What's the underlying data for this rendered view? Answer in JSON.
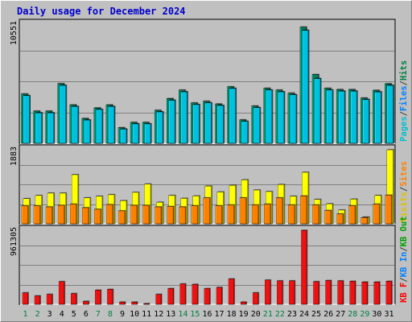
{
  "window": {
    "title": "Daily usage for December 2024"
  },
  "chart_data": {
    "type": "bar",
    "title": "Daily usage for December 2024",
    "grid": true,
    "categories": [
      "1",
      "2",
      "3",
      "4",
      "5",
      "6",
      "7",
      "8",
      "9",
      "10",
      "11",
      "12",
      "13",
      "14",
      "15",
      "16",
      "17",
      "18",
      "19",
      "20",
      "21",
      "22",
      "23",
      "24",
      "25",
      "26",
      "27",
      "28",
      "29",
      "30",
      "31"
    ],
    "category_colors": [
      "#008040",
      "#008040",
      "#000000",
      "#000000",
      "#000000",
      "#000000",
      "#008040",
      "#008040",
      "#000000",
      "#000000",
      "#000000",
      "#000000",
      "#000000",
      "#008040",
      "#008040",
      "#000000",
      "#000000",
      "#000000",
      "#000000",
      "#000000",
      "#008040",
      "#008040",
      "#000000",
      "#000000",
      "#000000",
      "#000000",
      "#000000",
      "#008040",
      "#008040",
      "#000000",
      "#000000"
    ],
    "panels": [
      {
        "id": "pages-files-hits",
        "ymax_label": "10551",
        "ylim": [
          0,
          10551
        ],
        "legend": [
          {
            "text": "Pages",
            "color": "#00c0d0"
          },
          {
            "text": "/",
            "color": "#404040"
          },
          {
            "text": "Files",
            "color": "#0080ff"
          },
          {
            "text": "/",
            "color": "#404040"
          },
          {
            "text": "Hits",
            "color": "#008040"
          }
        ],
        "series": [
          {
            "name": "Hits",
            "color": "#008060",
            "values": [
              4380,
              2860,
              2860,
              5290,
              3410,
              2210,
              3140,
              3410,
              1390,
              1860,
              1860,
              2930,
              3970,
              4720,
              3580,
              3730,
              3490,
              5010,
              2080,
              3310,
              4880,
              4720,
              4450,
              10300,
              6100,
              4880,
              4770,
              4770,
              4020,
              4700,
              5280
            ]
          },
          {
            "name": "Files",
            "color": "#0080ff",
            "values": [
              4220,
              2700,
              2700,
              5130,
              3260,
              2060,
              3000,
              3260,
              1260,
              1720,
              1720,
              2780,
              3810,
              4560,
              3430,
              3580,
              3350,
              4860,
              1940,
              3160,
              4720,
              4560,
              4300,
              10000,
              5730,
              4720,
              4620,
              4620,
              3880,
              4550,
              5130
            ]
          },
          {
            "name": "Pages",
            "color": "#00c0e0",
            "values": [
              4220,
              2700,
              2700,
              5130,
              3260,
              2060,
              3000,
              3260,
              1260,
              1720,
              1720,
              2780,
              3810,
              4560,
              3430,
              3580,
              3350,
              4860,
              1940,
              3160,
              4720,
              4560,
              4300,
              10000,
              5730,
              4720,
              4620,
              4620,
              3880,
              4550,
              5130
            ]
          }
        ]
      },
      {
        "id": "visits-sites",
        "ymax_label": "1883",
        "ylim": [
          0,
          1883
        ],
        "legend": [
          {
            "text": "Visits",
            "color": "#e0c000"
          },
          {
            "text": "/",
            "color": "#404040"
          },
          {
            "text": "Sites",
            "color": "#ff8000"
          }
        ],
        "series": [
          {
            "name": "Visits",
            "color": "#ffff00",
            "values": [
              640,
              720,
              780,
              780,
              1250,
              660,
              700,
              740,
              590,
              800,
              1010,
              550,
              720,
              650,
              710,
              960,
              810,
              980,
              1120,
              860,
              820,
              1000,
              700,
              1310,
              620,
              510,
              350,
              630,
              170,
              720,
              1883
            ]
          },
          {
            "name": "Sites",
            "color": "#ff8000",
            "values": [
              460,
              460,
              430,
              470,
              500,
              410,
              370,
              490,
              330,
              470,
              470,
              430,
              440,
              430,
              460,
              660,
              460,
              480,
              660,
              480,
              500,
              660,
              480,
              710,
              480,
              340,
              250,
              460,
              160,
              500,
              730
            ]
          }
        ]
      },
      {
        "id": "kbin-kbout-kbf",
        "ymax_label": "961305",
        "ylim": [
          0,
          961305
        ],
        "legend": [
          {
            "text": "KB F",
            "color": "#ff0000"
          },
          {
            "text": "/",
            "color": "#404040"
          },
          {
            "text": "KB In",
            "color": "#0080ff"
          },
          {
            "text": "/",
            "color": "#404040"
          },
          {
            "text": "KB Out",
            "color": "#00a000"
          }
        ],
        "series": [
          {
            "name": "KB F",
            "color": "#ee1111",
            "values": [
              150000,
              110000,
              130000,
              295000,
              140000,
              40000,
              185000,
              195000,
              30000,
              30000,
              10000,
              130000,
              205000,
              265000,
              260000,
              205000,
              220000,
              330000,
              30000,
              150000,
              315000,
              305000,
              305000,
              961305,
              295000,
              310000,
              305000,
              300000,
              290000,
              290000,
              300000
            ]
          }
        ]
      }
    ]
  }
}
